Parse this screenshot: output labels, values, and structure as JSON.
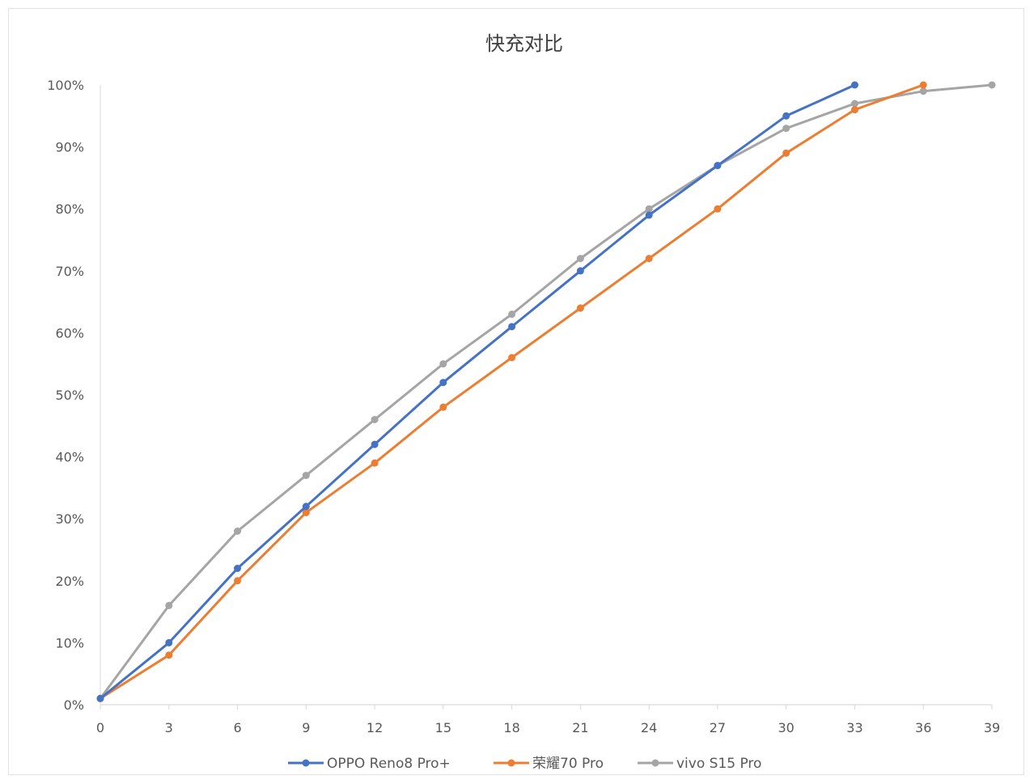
{
  "chart_data": {
    "type": "line",
    "title": "快充对比",
    "xlabel": "",
    "ylabel": "",
    "x": [
      0,
      3,
      6,
      9,
      12,
      15,
      18,
      21,
      24,
      27,
      30,
      33,
      36,
      39
    ],
    "x_ticks": [
      "0",
      "3",
      "6",
      "9",
      "12",
      "15",
      "18",
      "21",
      "24",
      "27",
      "30",
      "33",
      "36",
      "39"
    ],
    "y_ticks": [
      "0%",
      "10%",
      "20%",
      "30%",
      "40%",
      "50%",
      "60%",
      "70%",
      "80%",
      "90%",
      "100%"
    ],
    "xlim": [
      0,
      39
    ],
    "ylim": [
      0,
      100
    ],
    "y_unit": "%",
    "grid": false,
    "legend_position": "bottom",
    "series": [
      {
        "name": "OPPO Reno8 Pro+",
        "color": "#4472C4",
        "x": [
          0,
          3,
          6,
          9,
          12,
          15,
          18,
          21,
          24,
          27,
          30,
          33
        ],
        "values": [
          1,
          10,
          22,
          32,
          42,
          52,
          61,
          70,
          79,
          87,
          95,
          100
        ]
      },
      {
        "name": "荣耀70 Pro",
        "color": "#ED7D31",
        "x": [
          0,
          3,
          6,
          9,
          12,
          15,
          18,
          21,
          24,
          27,
          30,
          33,
          36
        ],
        "values": [
          1,
          8,
          20,
          31,
          39,
          48,
          56,
          64,
          72,
          80,
          89,
          96,
          100
        ]
      },
      {
        "name": "vivo S15 Pro",
        "color": "#A5A5A5",
        "x": [
          0,
          3,
          6,
          9,
          12,
          15,
          18,
          21,
          24,
          27,
          30,
          33,
          36,
          39
        ],
        "values": [
          1,
          16,
          28,
          37,
          46,
          55,
          63,
          72,
          80,
          87,
          93,
          97,
          99,
          100
        ]
      }
    ]
  }
}
